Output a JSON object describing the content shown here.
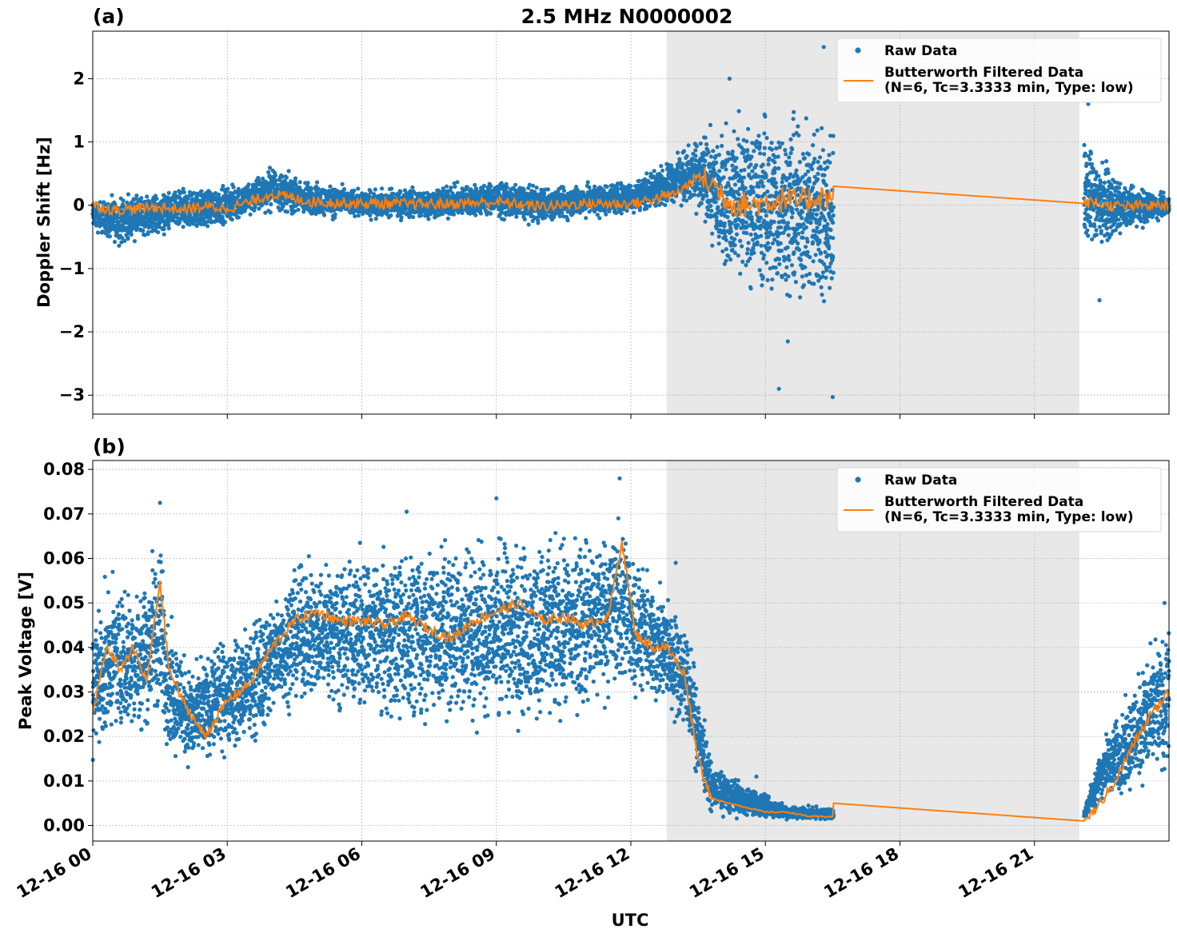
{
  "title": "2.5 MHz N0000002",
  "xlabel": "UTC",
  "x_tick_labels": [
    "12-16 00",
    "12-16 03",
    "12-16 06",
    "12-16 09",
    "12-16 12",
    "12-16 15",
    "12-16 18",
    "12-16 21"
  ],
  "colors": {
    "raw": "#1f77b4",
    "filtered": "#ff7f0e",
    "shade": "#e8e8e8"
  },
  "chart_data": [
    {
      "type": "scatter",
      "panel_label": "(a)",
      "ylabel": "Doppler Shift [Hz]",
      "x_unit": "hours UTC on 12-16",
      "xlim": [
        0,
        24
      ],
      "ylim": [
        -3.3,
        2.75
      ],
      "x_ticks": [
        0,
        3,
        6,
        9,
        12,
        15,
        18,
        21
      ],
      "y_ticks": [
        -3,
        -2,
        -1,
        0,
        1,
        2
      ],
      "y_tick_labels": [
        "−3",
        "−2",
        "−1",
        "0",
        "1",
        "2"
      ],
      "shaded_region": [
        12.8,
        22.0
      ],
      "grid": true,
      "legend_position": "upper right",
      "legend": [
        "Raw Data",
        "Butterworth Filtered Data\n(N=6, Tc=3.3333 min, Type: low)"
      ],
      "series": [
        {
          "name": "Raw Data",
          "style": "dots",
          "envelope": [
            {
              "x": 0.0,
              "lo": -0.45,
              "hi": 0.15
            },
            {
              "x": 0.5,
              "lo": -0.7,
              "hi": 0.2
            },
            {
              "x": 1.5,
              "lo": -0.55,
              "hi": 0.3
            },
            {
              "x": 2.5,
              "lo": -0.45,
              "hi": 0.35
            },
            {
              "x": 3.3,
              "lo": -0.3,
              "hi": 0.4
            },
            {
              "x": 4.0,
              "lo": -0.15,
              "hi": 0.7
            },
            {
              "x": 4.7,
              "lo": -0.25,
              "hi": 0.45
            },
            {
              "x": 6.0,
              "lo": -0.25,
              "hi": 0.3
            },
            {
              "x": 7.5,
              "lo": -0.3,
              "hi": 0.35
            },
            {
              "x": 9.0,
              "lo": -0.25,
              "hi": 0.45
            },
            {
              "x": 10.0,
              "lo": -0.35,
              "hi": 0.35
            },
            {
              "x": 11.0,
              "lo": -0.25,
              "hi": 0.4
            },
            {
              "x": 12.0,
              "lo": -0.2,
              "hi": 0.45
            },
            {
              "x": 12.8,
              "lo": -0.05,
              "hi": 0.75
            },
            {
              "x": 13.5,
              "lo": -0.2,
              "hi": 1.2
            },
            {
              "x": 14.0,
              "lo": -1.2,
              "hi": 1.5
            },
            {
              "x": 14.8,
              "lo": -1.7,
              "hi": 1.8
            },
            {
              "x": 15.6,
              "lo": -1.9,
              "hi": 1.8
            },
            {
              "x": 16.5,
              "lo": -2.0,
              "hi": 1.7
            },
            {
              "x": 22.1,
              "lo": -1.1,
              "hi": 1.5
            },
            {
              "x": 22.8,
              "lo": -0.6,
              "hi": 0.5
            },
            {
              "x": 24.0,
              "lo": -0.2,
              "hi": 0.2
            }
          ],
          "gaps": [
            [
              16.52,
              22.1
            ]
          ],
          "outliers": [
            [
              15.3,
              -2.9
            ],
            [
              16.5,
              -3.03
            ],
            [
              16.3,
              2.5
            ],
            [
              14.2,
              2.0
            ],
            [
              15.5,
              -2.15
            ],
            [
              22.45,
              -1.5
            ],
            [
              22.2,
              1.6
            ]
          ]
        },
        {
          "name": "Butterworth Filtered Data\n(N=6, Tc=3.3333 min, Type: low)",
          "style": "line",
          "x": [
            0.0,
            0.5,
            1.0,
            1.5,
            2.0,
            2.5,
            3.0,
            3.5,
            4.0,
            4.5,
            5.0,
            6.0,
            7.0,
            8.0,
            9.0,
            10.0,
            11.0,
            12.0,
            12.5,
            13.0,
            13.5,
            13.8,
            14.2,
            14.6,
            15.0,
            15.4,
            15.8,
            16.2,
            16.5,
            16.52,
            22.1,
            22.3,
            22.6,
            23.0,
            23.5,
            24.0
          ],
          "y": [
            0.0,
            -0.08,
            -0.05,
            -0.03,
            -0.07,
            -0.02,
            -0.05,
            0.05,
            0.18,
            0.1,
            0.05,
            0.03,
            0.02,
            0.02,
            0.05,
            -0.02,
            0.03,
            0.02,
            0.1,
            0.18,
            0.45,
            0.35,
            0.05,
            0.0,
            0.05,
            0.1,
            0.05,
            0.15,
            0.1,
            0.3,
            0.03,
            0.05,
            0.0,
            -0.02,
            -0.01,
            0.0
          ]
        }
      ]
    },
    {
      "type": "scatter",
      "panel_label": "(b)",
      "ylabel": "Peak Voltage [V]",
      "x_unit": "hours UTC on 12-16",
      "xlim": [
        0,
        24
      ],
      "ylim": [
        -0.0035,
        0.082
      ],
      "x_ticks": [
        0,
        3,
        6,
        9,
        12,
        15,
        18,
        21
      ],
      "y_ticks": [
        0.0,
        0.01,
        0.02,
        0.03,
        0.04,
        0.05,
        0.06,
        0.07,
        0.08
      ],
      "y_tick_labels": [
        "0.00",
        "0.01",
        "0.02",
        "0.03",
        "0.04",
        "0.05",
        "0.06",
        "0.07",
        "0.08"
      ],
      "shaded_region": [
        12.8,
        22.0
      ],
      "grid": true,
      "legend_position": "upper right",
      "legend": [
        "Raw Data",
        "Butterworth Filtered Data\n(N=6, Tc=3.3333 min, Type: low)"
      ],
      "series": [
        {
          "name": "Raw Data",
          "style": "dots",
          "envelope": [
            {
              "x": 0.0,
              "lo": 0.008,
              "hi": 0.055
            },
            {
              "x": 0.5,
              "lo": 0.018,
              "hi": 0.058
            },
            {
              "x": 1.0,
              "lo": 0.016,
              "hi": 0.058
            },
            {
              "x": 1.5,
              "lo": 0.018,
              "hi": 0.07
            },
            {
              "x": 1.7,
              "lo": 0.013,
              "hi": 0.05
            },
            {
              "x": 2.2,
              "lo": 0.01,
              "hi": 0.038
            },
            {
              "x": 3.0,
              "lo": 0.014,
              "hi": 0.045
            },
            {
              "x": 3.5,
              "lo": 0.014,
              "hi": 0.048
            },
            {
              "x": 4.5,
              "lo": 0.025,
              "hi": 0.062
            },
            {
              "x": 6.0,
              "lo": 0.02,
              "hi": 0.066
            },
            {
              "x": 7.5,
              "lo": 0.018,
              "hi": 0.068
            },
            {
              "x": 9.0,
              "lo": 0.018,
              "hi": 0.07
            },
            {
              "x": 10.5,
              "lo": 0.018,
              "hi": 0.069
            },
            {
              "x": 11.8,
              "lo": 0.025,
              "hi": 0.074
            },
            {
              "x": 12.2,
              "lo": 0.025,
              "hi": 0.062
            },
            {
              "x": 12.8,
              "lo": 0.022,
              "hi": 0.055
            },
            {
              "x": 13.2,
              "lo": 0.02,
              "hi": 0.048
            },
            {
              "x": 13.5,
              "lo": 0.007,
              "hi": 0.035
            },
            {
              "x": 13.8,
              "lo": 0.002,
              "hi": 0.015
            },
            {
              "x": 14.5,
              "lo": 0.001,
              "hi": 0.01
            },
            {
              "x": 15.5,
              "lo": 0.001,
              "hi": 0.005
            },
            {
              "x": 16.5,
              "lo": 0.001,
              "hi": 0.004
            },
            {
              "x": 22.1,
              "lo": 0.001,
              "hi": 0.004
            },
            {
              "x": 22.5,
              "lo": 0.004,
              "hi": 0.02
            },
            {
              "x": 23.0,
              "lo": 0.005,
              "hi": 0.03
            },
            {
              "x": 23.5,
              "lo": 0.006,
              "hi": 0.042
            },
            {
              "x": 24.0,
              "lo": 0.008,
              "hi": 0.048
            }
          ],
          "gaps": [
            [
              16.52,
              22.1
            ]
          ],
          "outliers": [
            [
              11.75,
              0.078
            ],
            [
              1.5,
              0.0725
            ],
            [
              7.0,
              0.0705
            ],
            [
              9.0,
              0.0735
            ],
            [
              13.0,
              0.059
            ],
            [
              14.8,
              0.011
            ],
            [
              23.9,
              0.05
            ]
          ]
        },
        {
          "name": "Butterworth Filtered Data\n(N=6, Tc=3.3333 min, Type: low)",
          "style": "line",
          "x": [
            0.0,
            0.3,
            0.6,
            0.9,
            1.2,
            1.5,
            1.7,
            2.0,
            2.5,
            3.0,
            3.5,
            4.0,
            4.5,
            5.0,
            5.5,
            6.0,
            6.5,
            7.0,
            7.5,
            8.0,
            8.5,
            9.0,
            9.5,
            10.0,
            10.5,
            11.0,
            11.5,
            11.8,
            12.1,
            12.5,
            12.8,
            13.2,
            13.5,
            13.8,
            14.2,
            14.6,
            15.0,
            15.5,
            16.0,
            16.5,
            16.52,
            22.1,
            22.4,
            22.8,
            23.2,
            23.6,
            24.0
          ],
          "y": [
            0.025,
            0.04,
            0.035,
            0.04,
            0.032,
            0.055,
            0.035,
            0.028,
            0.02,
            0.028,
            0.032,
            0.04,
            0.046,
            0.048,
            0.046,
            0.046,
            0.045,
            0.047,
            0.044,
            0.042,
            0.046,
            0.048,
            0.05,
            0.046,
            0.047,
            0.045,
            0.047,
            0.064,
            0.043,
            0.04,
            0.04,
            0.034,
            0.015,
            0.006,
            0.005,
            0.004,
            0.003,
            0.003,
            0.002,
            0.002,
            0.005,
            0.001,
            0.004,
            0.01,
            0.018,
            0.025,
            0.03
          ]
        }
      ]
    }
  ]
}
